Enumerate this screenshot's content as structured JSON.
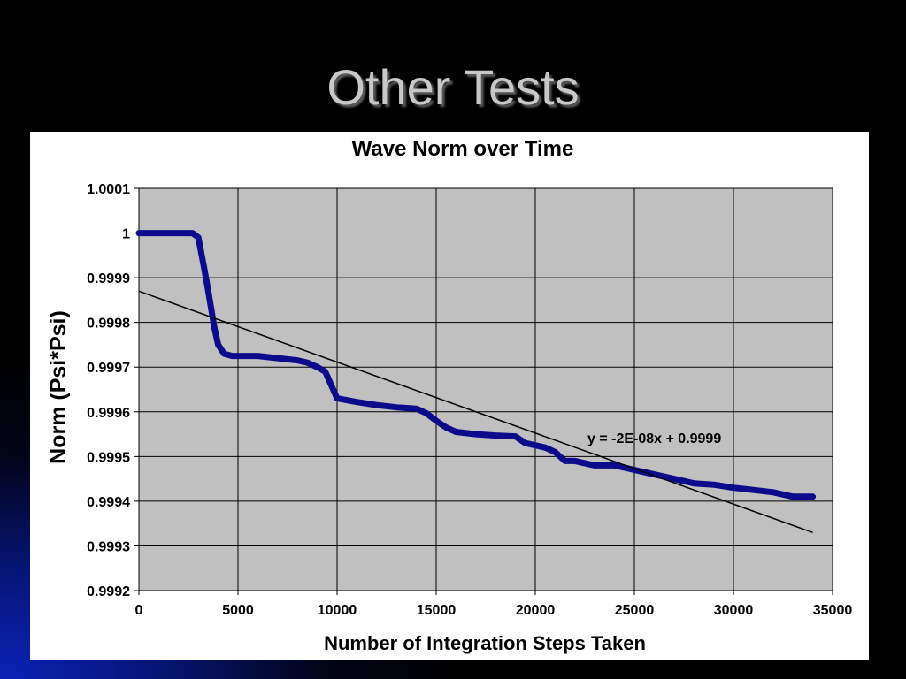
{
  "slide": {
    "title": "Other Tests"
  },
  "colors": {
    "plot_background": "#c0c0c0",
    "series": "#0b0b8c",
    "trendline": "#000000",
    "grid": "#000000"
  },
  "chart_data": {
    "type": "line",
    "title": "Wave Norm over Time",
    "xlabel": "Number of Integration Steps Taken",
    "ylabel": "Norm (Psi*Psi)",
    "xlim": [
      0,
      35000
    ],
    "ylim": [
      0.9992,
      1.0001
    ],
    "x_ticks": [
      "0",
      "5000",
      "10000",
      "15000",
      "20000",
      "25000",
      "30000",
      "35000"
    ],
    "y_ticks": [
      "1.0001",
      "1",
      "0.9999",
      "0.9998",
      "0.9997",
      "0.9996",
      "0.9995",
      "0.9994",
      "0.9993",
      "0.9992"
    ],
    "grid": true,
    "legend": "none",
    "series": [
      {
        "x": [
          0,
          1000,
          2000,
          2700,
          3000,
          3300,
          3500,
          3800,
          4000,
          4300,
          4700,
          5000,
          6000,
          7000,
          8000,
          8500,
          9000,
          9400,
          9700,
          10000,
          11000,
          12000,
          13000,
          14000,
          14500,
          15000,
          15500,
          16000,
          17000,
          18000,
          19000,
          19500,
          20000,
          20500,
          21000,
          21500,
          22000,
          23000,
          24000,
          25000,
          26000,
          27000,
          28000,
          29000,
          30000,
          31000,
          32000,
          33000,
          34000
        ],
        "y": [
          1.0,
          1.0,
          1.0,
          1.0,
          0.99999,
          0.99992,
          0.99987,
          0.99979,
          0.99975,
          0.99973,
          0.999725,
          0.999725,
          0.999725,
          0.99972,
          0.999715,
          0.99971,
          0.9997,
          0.99969,
          0.99966,
          0.99963,
          0.999622,
          0.999615,
          0.99961,
          0.999607,
          0.999597,
          0.99958,
          0.999565,
          0.999555,
          0.99955,
          0.999547,
          0.999545,
          0.99953,
          0.999525,
          0.99952,
          0.99951,
          0.99949,
          0.99949,
          0.99948,
          0.99948,
          0.99947,
          0.99946,
          0.99945,
          0.99944,
          0.999437,
          0.99943,
          0.999425,
          0.99942,
          0.99941,
          0.99941
        ]
      }
    ],
    "trendline": {
      "equation": "y = -2E-08x + 0.9999",
      "x": [
        0,
        34000
      ],
      "y": [
        0.99987,
        0.99933
      ]
    }
  }
}
